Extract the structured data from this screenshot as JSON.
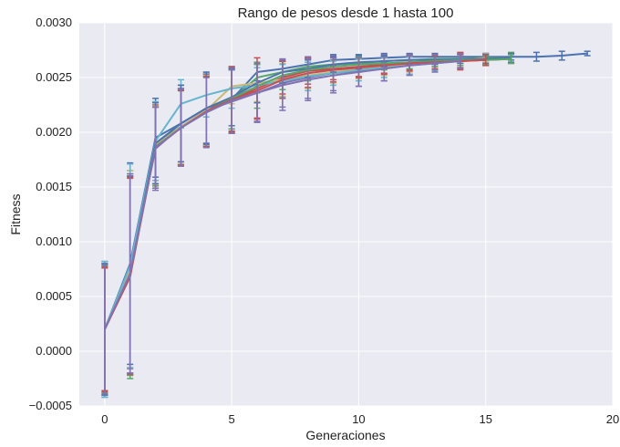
{
  "chart_data": {
    "type": "line",
    "title": "Rango de pesos desde 1 hasta 100",
    "xlabel": "Generaciones",
    "ylabel": "Fitness",
    "xlim": [
      -1,
      20
    ],
    "ylim": [
      -0.0005,
      0.003
    ],
    "x_ticks": [
      0,
      5,
      10,
      15,
      20
    ],
    "x_tick_labels": [
      "0",
      "5",
      "10",
      "15",
      "20"
    ],
    "y_ticks": [
      -0.0005,
      0,
      0.0005,
      0.001,
      0.0015,
      0.002,
      0.0025,
      0.003
    ],
    "y_tick_labels": [
      "−0.0005",
      "0.0000",
      "0.0005",
      "0.0010",
      "0.0015",
      "0.0020",
      "0.0025",
      "0.0030"
    ],
    "grid": true,
    "error_bars": true,
    "colors": {
      "background": "#eaeaf2",
      "series": [
        "#4c72b0",
        "#55a868",
        "#c44e52",
        "#8172b2",
        "#ccb974",
        "#64b5cd",
        "#4c72b0",
        "#55a868",
        "#c44e52",
        "#8172b2"
      ]
    },
    "series": [
      {
        "x": [
          0,
          1,
          2,
          3,
          4,
          5,
          6,
          7,
          8,
          9,
          10,
          11,
          12,
          13,
          14,
          15,
          16,
          17,
          18,
          19
        ],
        "values": [
          0.0002,
          0.0008,
          0.00195,
          0.00208,
          0.00222,
          0.0023,
          0.00255,
          0.00258,
          0.00262,
          0.00266,
          0.00267,
          0.00268,
          0.00269,
          0.00269,
          0.00269,
          0.00269,
          0.00269,
          0.00269,
          0.0027,
          0.00272
        ],
        "err": [
          0.00062,
          0.00092,
          0.00036,
          0.00035,
          0.00032,
          0.00027,
          8e-05,
          7e-05,
          6e-05,
          5e-05,
          4e-05,
          4e-05,
          3e-05,
          3e-05,
          3e-05,
          3e-05,
          3e-05,
          4e-05,
          4e-05,
          2e-05
        ]
      },
      {
        "x": [
          0,
          1,
          2,
          3,
          4,
          5,
          6,
          7,
          8,
          9,
          10,
          11,
          12,
          13,
          14,
          15,
          16
        ],
        "values": [
          0.0002,
          0.0007,
          0.0019,
          0.00205,
          0.0022,
          0.0023,
          0.0025,
          0.00255,
          0.0026,
          0.00262,
          0.00263,
          0.00265,
          0.00266,
          0.00267,
          0.00267,
          0.00268,
          0.00268
        ],
        "err": [
          0.0006,
          0.00095,
          0.00037,
          0.00034,
          0.00032,
          0.0003,
          0.00014,
          0.0001,
          8e-05,
          7e-05,
          6e-05,
          6e-05,
          5e-05,
          4e-05,
          4e-05,
          4e-05,
          5e-05
        ]
      },
      {
        "x": [
          0,
          1,
          2,
          3,
          4,
          5,
          6,
          7,
          8,
          9,
          10,
          11,
          12,
          13,
          14,
          15,
          16
        ],
        "values": [
          0.0002,
          0.00068,
          0.00188,
          0.00205,
          0.0022,
          0.0023,
          0.0024,
          0.0025,
          0.00256,
          0.00258,
          0.0026,
          0.00262,
          0.00264,
          0.00265,
          0.00265,
          0.00266,
          0.00267
        ],
        "err": [
          0.00056,
          0.0009,
          0.00037,
          0.00035,
          0.00033,
          0.0003,
          0.00028,
          0.00015,
          0.00012,
          0.0001,
          9e-05,
          8e-05,
          7e-05,
          5e-05,
          8e-05,
          5e-05,
          4e-05
        ]
      },
      {
        "x": [
          0,
          1,
          2,
          3,
          4,
          5,
          6,
          7,
          8,
          9,
          10,
          11,
          12,
          13,
          14,
          15,
          16
        ],
        "values": [
          0.0002,
          0.00072,
          0.00185,
          0.00205,
          0.0022,
          0.00228,
          0.00236,
          0.00245,
          0.0025,
          0.00254,
          0.00256,
          0.00259,
          0.00262,
          0.00264,
          0.00265,
          0.00267,
          0.00268
        ],
        "err": [
          0.0006,
          0.00088,
          0.00038,
          0.00035,
          0.00032,
          0.00029,
          0.00026,
          0.00022,
          0.00019,
          0.00016,
          0.00014,
          0.00012,
          9e-05,
          7e-05,
          6e-05,
          5e-05,
          4e-05
        ]
      },
      {
        "x": [
          0,
          1,
          2,
          3,
          4,
          5,
          6,
          7,
          8,
          9,
          10,
          11,
          12,
          13,
          14,
          15
        ],
        "values": [
          0.0002,
          0.00075,
          0.00188,
          0.00205,
          0.0022,
          0.00242,
          0.00245,
          0.00248,
          0.00252,
          0.00255,
          0.00258,
          0.0026,
          0.00262,
          0.00264,
          0.00266,
          0.00268
        ],
        "err": [
          0.00058,
          0.0009,
          0.00036,
          0.00034,
          0.00032,
          0.00016,
          0.00017,
          0.00015,
          0.00012,
          0.0001,
          9e-05,
          8e-05,
          7e-05,
          6e-05,
          5e-05,
          4e-05
        ]
      },
      {
        "x": [
          0,
          1,
          2,
          3,
          4,
          5,
          6,
          7,
          8,
          9,
          10,
          11,
          12,
          13,
          14,
          15
        ],
        "values": [
          0.0002,
          0.00078,
          0.00192,
          0.00226,
          0.00234,
          0.0024,
          0.00243,
          0.00247,
          0.00251,
          0.00254,
          0.00257,
          0.00259,
          0.00261,
          0.00263,
          0.00265,
          0.00267
        ],
        "err": [
          0.00062,
          0.00093,
          0.00036,
          0.00022,
          0.0002,
          0.00018,
          0.00016,
          0.00015,
          0.00013,
          0.00011,
          0.0001,
          9e-05,
          8e-05,
          7e-05,
          6e-05,
          5e-05
        ]
      },
      {
        "x": [
          0,
          1,
          2,
          3,
          4,
          5,
          6,
          7,
          8,
          9,
          10,
          11,
          12,
          13,
          14,
          15,
          16
        ],
        "values": [
          0.0002,
          0.0007,
          0.0019,
          0.00208,
          0.00222,
          0.00232,
          0.00245,
          0.00255,
          0.00258,
          0.00262,
          0.00264,
          0.00265,
          0.00266,
          0.00266,
          0.00267,
          0.00267,
          0.00268
        ],
        "err": [
          0.0006,
          0.0009,
          0.00037,
          0.00035,
          0.00033,
          0.00026,
          0.00018,
          0.0001,
          8e-05,
          7e-05,
          6e-05,
          5e-05,
          4e-05,
          4e-05,
          4e-05,
          4e-05,
          4e-05
        ]
      },
      {
        "x": [
          0,
          1,
          2,
          3,
          4,
          5,
          6,
          7,
          8,
          9,
          10,
          11,
          12,
          13,
          14,
          15,
          16
        ],
        "values": [
          0.0002,
          0.0007,
          0.00187,
          0.00204,
          0.00219,
          0.00231,
          0.00242,
          0.00252,
          0.00257,
          0.0026,
          0.00262,
          0.00263,
          0.00264,
          0.00265,
          0.00266,
          0.00266,
          0.00267
        ],
        "err": [
          0.00058,
          0.00092,
          0.00036,
          0.00034,
          0.00032,
          0.00028,
          0.0002,
          0.00013,
          0.0001,
          8e-05,
          7e-05,
          6e-05,
          6e-05,
          5e-05,
          5e-05,
          4e-05,
          4e-05
        ]
      },
      {
        "x": [
          0,
          1,
          2,
          3,
          4,
          5,
          6,
          7,
          8,
          9,
          10,
          11,
          12,
          13,
          14,
          15
        ],
        "values": [
          0.0002,
          0.00069,
          0.00186,
          0.00204,
          0.00219,
          0.0023,
          0.00238,
          0.00248,
          0.00254,
          0.00257,
          0.00259,
          0.00261,
          0.00263,
          0.00264,
          0.00265,
          0.00266
        ],
        "err": [
          0.00057,
          0.0009,
          0.00037,
          0.00034,
          0.00032,
          0.00029,
          0.00025,
          0.00017,
          0.00013,
          0.00011,
          9e-05,
          8e-05,
          7e-05,
          6e-05,
          6e-05,
          5e-05
        ]
      },
      {
        "x": [
          0,
          1,
          2,
          3,
          4,
          5,
          6,
          7,
          8,
          9,
          10,
          11,
          12,
          13,
          14
        ],
        "values": [
          0.0002,
          0.00071,
          0.00186,
          0.00204,
          0.00218,
          0.00229,
          0.00236,
          0.00243,
          0.00248,
          0.00252,
          0.00255,
          0.00258,
          0.00261,
          0.00263,
          0.00265
        ],
        "err": [
          0.00059,
          0.00091,
          0.00037,
          0.00035,
          0.00032,
          0.0003,
          0.00027,
          0.00023,
          0.00019,
          0.00016,
          0.00013,
          0.00011,
          9e-05,
          8e-05,
          7e-05
        ]
      }
    ]
  }
}
